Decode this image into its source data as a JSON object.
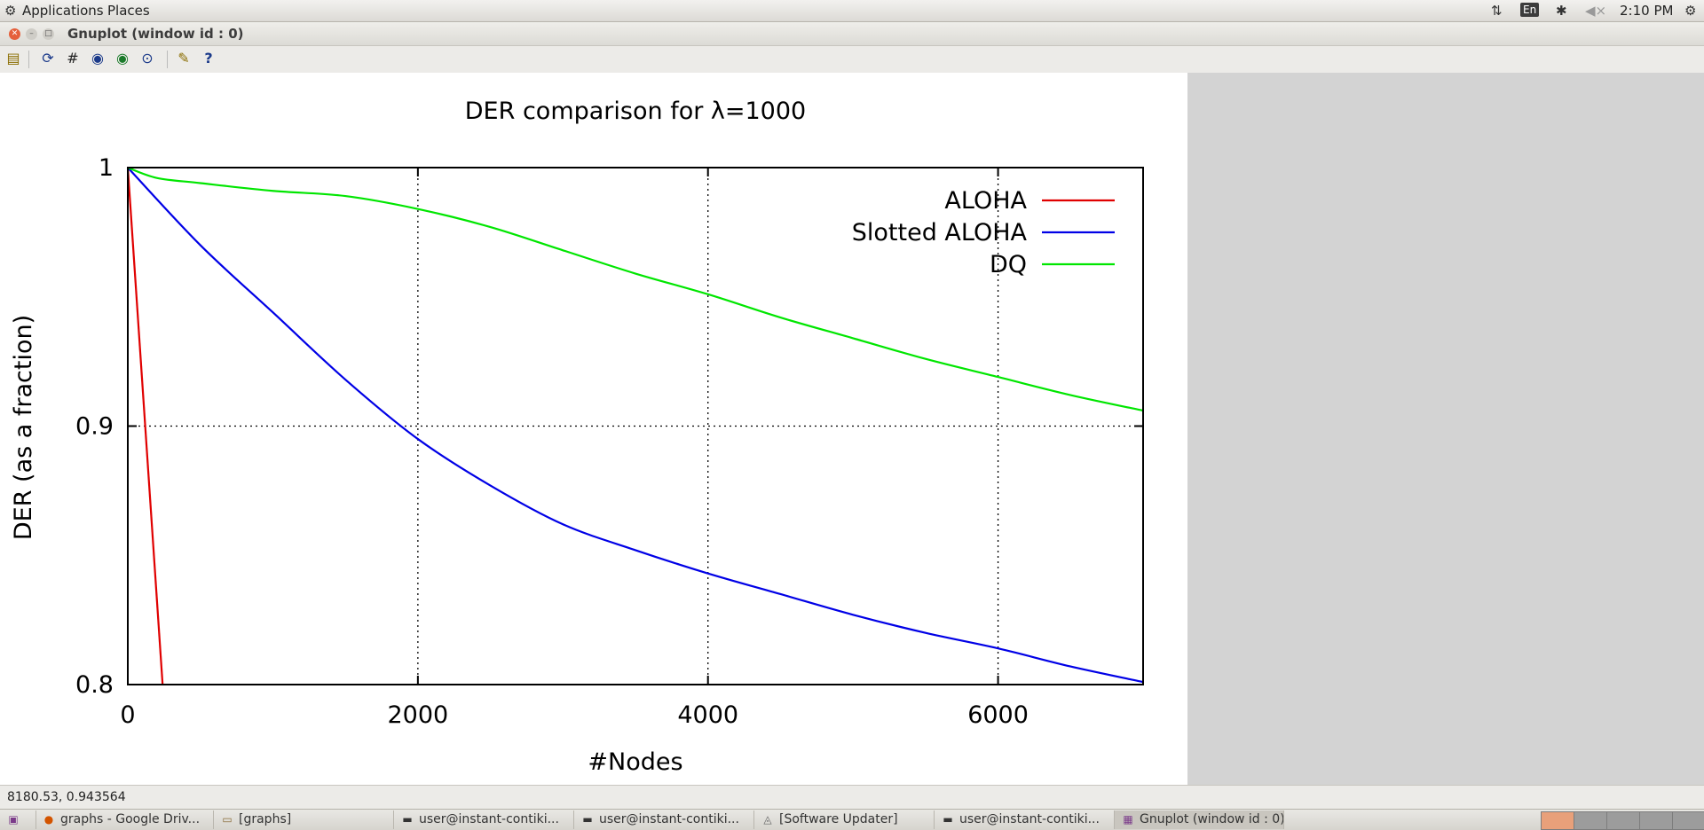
{
  "top_panel": {
    "applications": "Applications",
    "places": "Places",
    "lang": "En",
    "clock": "2:10 PM"
  },
  "window": {
    "title": "Gnuplot (window id : 0)"
  },
  "toolbar": {
    "icons": [
      "clipboard-icon",
      "replot-icon",
      "grid-icon",
      "zoom-prev-icon",
      "zoom-next-icon",
      "autoscale-icon",
      "settings-icon",
      "help-icon"
    ]
  },
  "statusbar": {
    "coords": "8180.53,  0.943564"
  },
  "taskbar": {
    "tasks": [
      {
        "label": "graphs - Google Driv...",
        "icon": "firefox-icon"
      },
      {
        "label": "[graphs]",
        "icon": "folder-icon"
      },
      {
        "label": "user@instant-contiki...",
        "icon": "terminal-icon"
      },
      {
        "label": "user@instant-contiki...",
        "icon": "terminal-icon"
      },
      {
        "label": "[Software Updater]",
        "icon": "updater-icon"
      },
      {
        "label": "user@instant-contiki...",
        "icon": "terminal-icon"
      },
      {
        "label": "Gnuplot (window id : 0)",
        "icon": "gnuplot-icon"
      }
    ]
  },
  "chart_data": {
    "type": "line",
    "title": "DER comparison for λ=1000",
    "xlabel": "#Nodes",
    "ylabel": "DER (as a fraction)",
    "xlim": [
      0,
      7000
    ],
    "ylim": [
      0.8,
      1.0
    ],
    "xticks": [
      "0",
      "2000",
      "4000",
      "6000"
    ],
    "yticks": [
      "0.8",
      "0.9",
      "1"
    ],
    "grid": true,
    "legend_position": "top-right",
    "series": [
      {
        "name": "ALOHA",
        "color": "#e00000",
        "points": [
          [
            0,
            1.0
          ],
          [
            240,
            0.8
          ]
        ]
      },
      {
        "name": "Slotted ALOHA",
        "color": "#0000e6",
        "points": [
          [
            0,
            1.0
          ],
          [
            500,
            0.97
          ],
          [
            1000,
            0.944
          ],
          [
            1500,
            0.918
          ],
          [
            2000,
            0.895
          ],
          [
            2500,
            0.877
          ],
          [
            3000,
            0.862
          ],
          [
            3500,
            0.852
          ],
          [
            4000,
            0.843
          ],
          [
            4500,
            0.835
          ],
          [
            5000,
            0.827
          ],
          [
            5500,
            0.82
          ],
          [
            6000,
            0.814
          ],
          [
            6500,
            0.807
          ],
          [
            7000,
            0.801
          ]
        ]
      },
      {
        "name": "DQ",
        "color": "#00e600",
        "points": [
          [
            0,
            1.0
          ],
          [
            200,
            0.996
          ],
          [
            500,
            0.994
          ],
          [
            1000,
            0.991
          ],
          [
            1500,
            0.989
          ],
          [
            2000,
            0.984
          ],
          [
            2500,
            0.977
          ],
          [
            3000,
            0.968
          ],
          [
            3500,
            0.959
          ],
          [
            4000,
            0.951
          ],
          [
            4500,
            0.942
          ],
          [
            5000,
            0.934
          ],
          [
            5500,
            0.926
          ],
          [
            6000,
            0.919
          ],
          [
            6500,
            0.912
          ],
          [
            7000,
            0.906
          ]
        ]
      }
    ]
  }
}
